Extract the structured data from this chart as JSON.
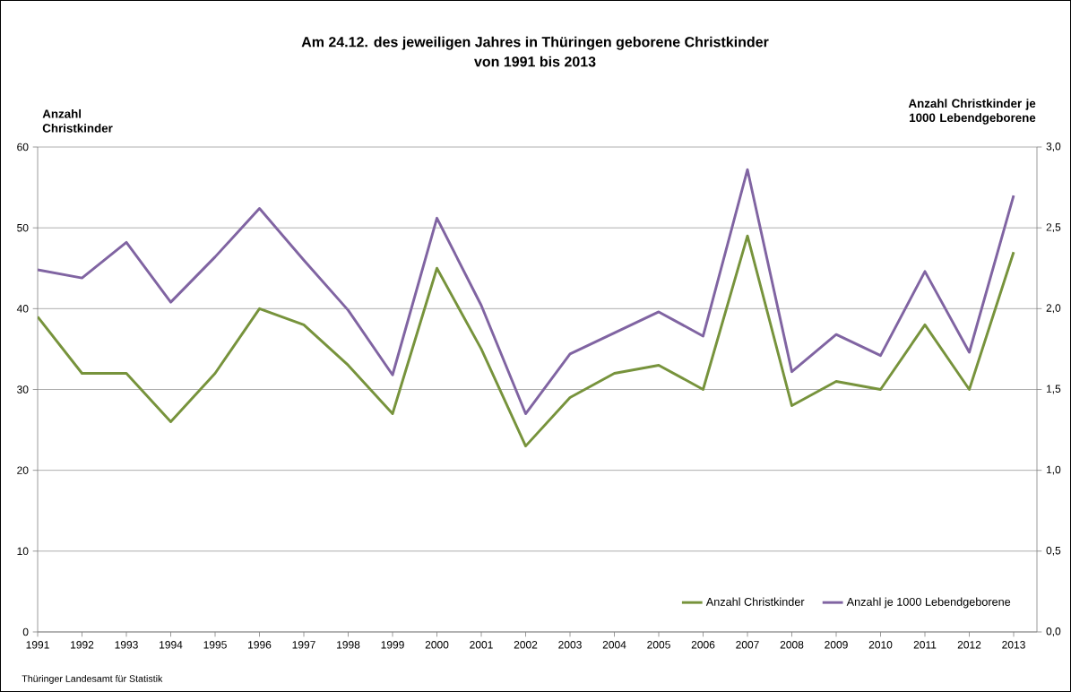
{
  "chart_data": {
    "type": "line",
    "title": "Am 24.12. des jeweiligen Jahres in Thüringen geborene Christkinder",
    "subtitle": "von 1991 bis 2013",
    "ylabel": "Anzahl Christkinder",
    "y2label": "Anzahl Christkinder je 1000 Lebendgeborene",
    "annotations": [
      "Thüringer Landesamt  für Statistik"
    ],
    "categories": [
      "1991",
      "1992",
      "1993",
      "1994",
      "1995",
      "1996",
      "1997",
      "1998",
      "1999",
      "2000",
      "2001",
      "2002",
      "2003",
      "2004",
      "2005",
      "2006",
      "2007",
      "2008",
      "2009",
      "2010",
      "2011",
      "2012",
      "2013"
    ],
    "series": [
      {
        "name": "Anzahl Christkinder",
        "color": "#77933c",
        "values": [
          39,
          32,
          32,
          26,
          32,
          40,
          38,
          33,
          27,
          45,
          35,
          23,
          29,
          32,
          33,
          30,
          49,
          28,
          31,
          30,
          38,
          30,
          47
        ]
      },
      {
        "name": "Anzahl je 1000 Lebendgeborene",
        "color": "#8064a2",
        "axis": "y2",
        "values": [
          2.24,
          2.19,
          2.41,
          2.04,
          2.32,
          2.62,
          2.3,
          1.99,
          1.59,
          2.56,
          2.02,
          1.35,
          1.72,
          1.85,
          1.98,
          1.83,
          2.86,
          1.61,
          1.84,
          1.71,
          2.23,
          1.73,
          2.7
        ]
      }
    ],
    "ylim": [
      0,
      60
    ],
    "yticks": [
      0,
      10,
      20,
      30,
      40,
      50,
      60
    ],
    "y2lim": [
      0,
      3
    ],
    "y2ticks": [
      {
        "value": 0,
        "label": "0,0"
      },
      {
        "value": 0.5,
        "label": "0,5"
      },
      {
        "value": 1,
        "label": "1,0"
      },
      {
        "value": 1.5,
        "label": "1,5"
      },
      {
        "value": 2,
        "label": "2,0"
      },
      {
        "value": 2.5,
        "label": "2,5"
      },
      {
        "value": 3,
        "label": "3,0"
      }
    ],
    "grid": "y",
    "legend": "bottom right"
  }
}
